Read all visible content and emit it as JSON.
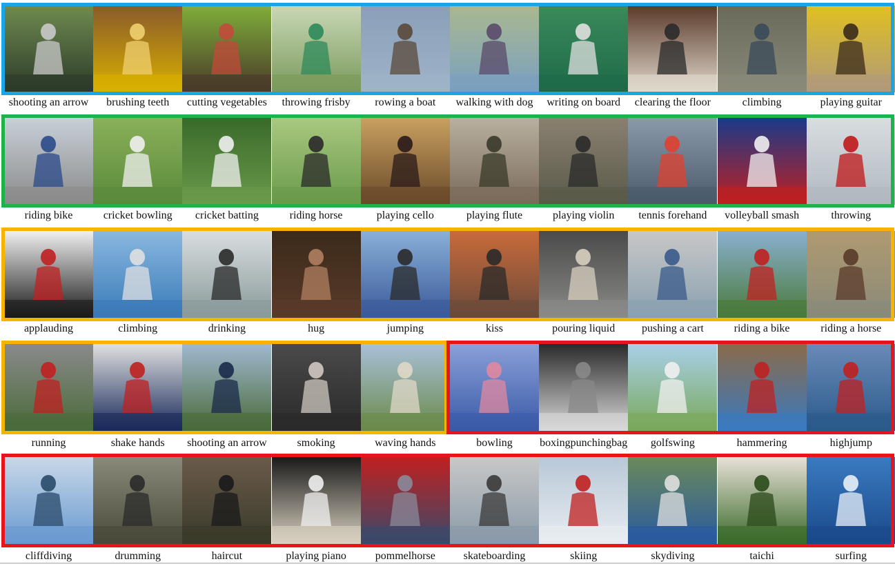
{
  "colors": {
    "blue": "#1aa6e6",
    "green": "#1fb24a",
    "yellow": "#f5b400",
    "red": "#e8141b"
  },
  "rows": [
    [
      "shooting an arrow",
      "brushing teeth",
      "cutting vegetables",
      "throwing frisby",
      "rowing a boat",
      "walking with dog",
      "writing on board",
      "clearing the floor",
      "climbing",
      "playing guitar"
    ],
    [
      "riding bike",
      "cricket bowling",
      "cricket batting",
      "riding horse",
      "playing cello",
      "playing flute",
      "playing violin",
      "tennis forehand",
      "volleyball smash",
      "throwing"
    ],
    [
      "applauding",
      "climbing",
      "drinking",
      "hug",
      "jumping",
      "kiss",
      "pouring liquid",
      "pushing a cart",
      "riding a bike",
      "riding a horse"
    ],
    [
      "running",
      "shake hands",
      "shooting an arrow",
      "smoking",
      "waving hands",
      "bowling",
      "boxingpunchingbag",
      "golfswing",
      "hammering",
      "highjump"
    ],
    [
      "cliffdiving",
      "drumming",
      "haircut",
      "playing piano",
      "pommelhorse",
      "skateboarding",
      "skiing",
      "skydiving",
      "taichi",
      "surfing"
    ]
  ],
  "thumbs": [
    [
      [
        "#2d3a2a",
        "#6f8b4f",
        "#c9c9c9"
      ],
      [
        "#d8b000",
        "#8a5a2b",
        "#f0d070"
      ],
      [
        "#4a3a2a",
        "#7fae3a",
        "#c24a3a"
      ],
      [
        "#7a9a5a",
        "#c9d7b7",
        "#2e8a5a"
      ],
      [
        "#9fb3c8",
        "#8aa0b8",
        "#5a4a3a"
      ],
      [
        "#7aa0c0",
        "#aab890",
        "#5a4a6a"
      ],
      [
        "#1e6a4a",
        "#3a8a5a",
        "#e0e0e0"
      ],
      [
        "#e0d8cc",
        "#5a3a2a",
        "#2a2a2a"
      ],
      [
        "#8a8a7a",
        "#6a6a5a",
        "#3a4a5a"
      ],
      [
        "#b09a7a",
        "#e0c020",
        "#3a2a1a"
      ]
    ],
    [
      [
        "#8a8a8a",
        "#c8d0d8",
        "#2a4a8a"
      ],
      [
        "#5a8a3a",
        "#8ab05a",
        "#f0f0f0"
      ],
      [
        "#6a9a4a",
        "#3a6a2a",
        "#f0f0f0"
      ],
      [
        "#6a9a4a",
        "#a8c880",
        "#2a2a2a"
      ],
      [
        "#6a4a2a",
        "#c8a060",
        "#2a1a1a"
      ],
      [
        "#7a6a5a",
        "#b8b0a0",
        "#3a3a2a"
      ],
      [
        "#5a5a4a",
        "#8a8070",
        "#2a2a2a"
      ],
      [
        "#4a5a6a",
        "#8a9aaa",
        "#e04030"
      ],
      [
        "#c02020",
        "#1a3a8a",
        "#f0f0f0"
      ],
      [
        "#b0b8c0",
        "#d8dde0",
        "#c01818"
      ]
    ],
    [
      [
        "#1a1a1a",
        "#f0f0f0",
        "#c02020"
      ],
      [
        "#3a7ab8",
        "#8ab8e0",
        "#e0e0e0"
      ],
      [
        "#8a9a9a",
        "#d8dde0",
        "#2a2a2a"
      ],
      [
        "#5a3a2a",
        "#3a2a1a",
        "#b08060"
      ],
      [
        "#3a5a9a",
        "#8ab0d8",
        "#2a2a2a"
      ],
      [
        "#6a4a3a",
        "#c86a3a",
        "#2a2a2a"
      ],
      [
        "#8a8a88",
        "#4a4a4a",
        "#d8d0c0"
      ],
      [
        "#8aa0b0",
        "#c8c8c8",
        "#3a5a8a"
      ],
      [
        "#4a7a3a",
        "#8ab0d0",
        "#c02020"
      ],
      [
        "#8a8a7a",
        "#b09a70",
        "#5a3a2a"
      ]
    ],
    [
      [
        "#4a6a3a",
        "#8a8a8a",
        "#c02020"
      ],
      [
        "#1a2a5a",
        "#e0e0e0",
        "#c02020"
      ],
      [
        "#4a6a3a",
        "#a0b8d0",
        "#1a2a4a"
      ],
      [
        "#2a2a2a",
        "#4a4a4a",
        "#d0c8c0"
      ],
      [
        "#6a8a4a",
        "#a8c0d8",
        "#e0d8c8"
      ],
      [
        "#3a5aa8",
        "#8aa0d8",
        "#e088a0"
      ],
      [
        "#d8d8d8",
        "#2a2a2a",
        "#888888"
      ],
      [
        "#7aa85a",
        "#a8d0e8",
        "#f0f0f0"
      ],
      [
        "#3a7ac0",
        "#8a6a4a",
        "#c02020"
      ],
      [
        "#2a5a8a",
        "#6a8ab8",
        "#c02020"
      ]
    ],
    [
      [
        "#6a9ad0",
        "#c8d8e8",
        "#2a4a6a"
      ],
      [
        "#4a4a3a",
        "#8a8a7a",
        "#2a2a2a"
      ],
      [
        "#3a3a2a",
        "#6a5a4a",
        "#1a1a1a"
      ],
      [
        "#d8d0c0",
        "#1a1a1a",
        "#f0f0f0"
      ],
      [
        "#3a4a6a",
        "#c02020",
        "#8a8a9a"
      ],
      [
        "#8a9aa8",
        "#c8c8c8",
        "#3a3a3a"
      ],
      [
        "#e8ecf0",
        "#b8c8d8",
        "#c02020"
      ],
      [
        "#2a5aa0",
        "#6a8a5a",
        "#e0e0e0"
      ],
      [
        "#3a6a2a",
        "#e8e0d8",
        "#2a4a1a"
      ],
      [
        "#1a4a8a",
        "#3a7ac0",
        "#e8f0f8"
      ]
    ]
  ]
}
